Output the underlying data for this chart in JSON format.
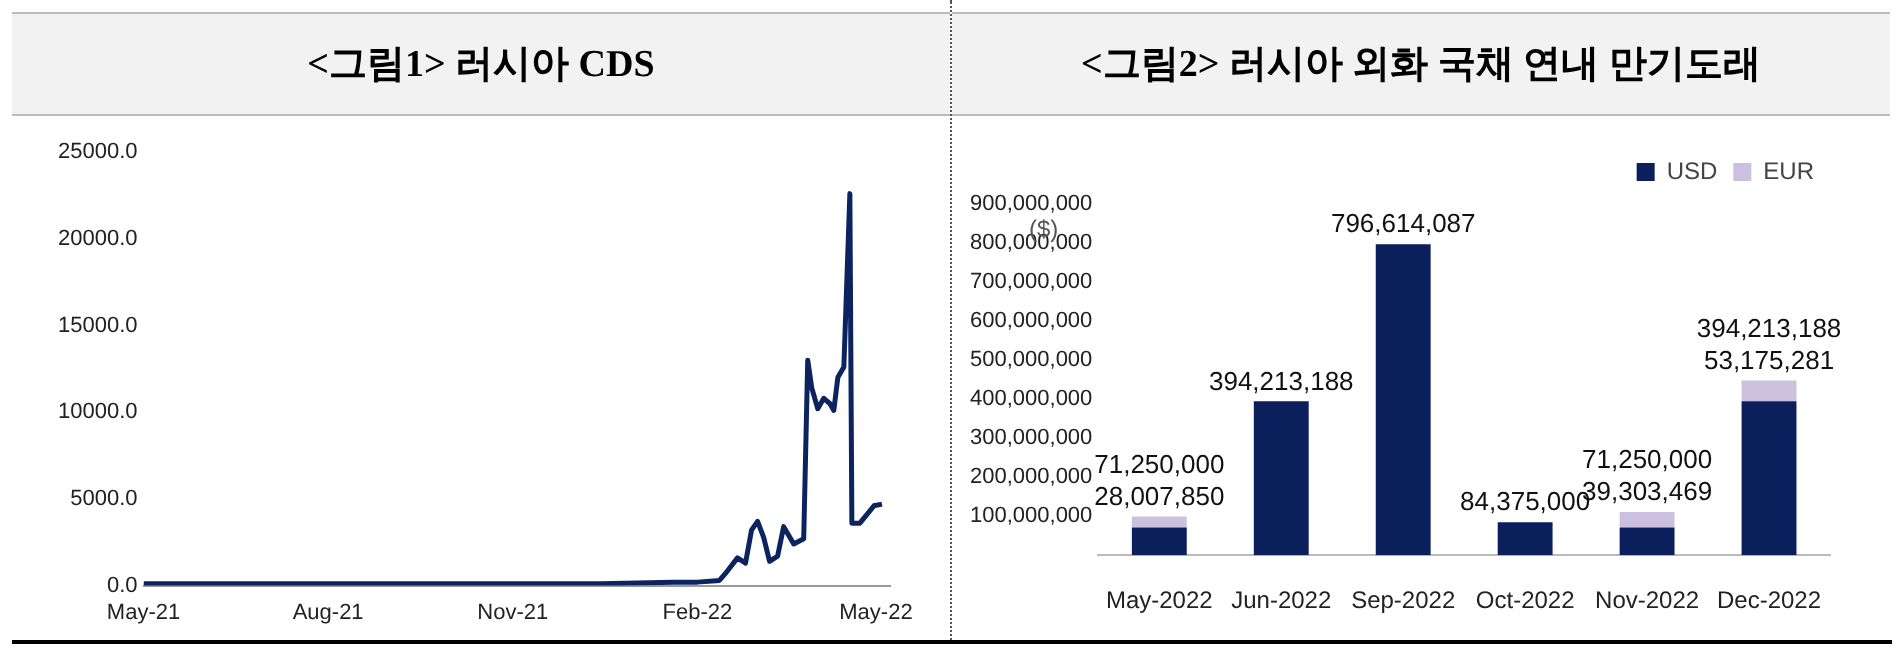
{
  "chart_data": [
    {
      "type": "line",
      "title": "<그림1> 러시아 CDS",
      "x": [
        "2021-05-01",
        "2021-06-15",
        "2021-08-01",
        "2021-09-15",
        "2021-11-01",
        "2021-12-15",
        "2022-01-20",
        "2022-02-01",
        "2022-02-12",
        "2022-02-15",
        "2022-02-21",
        "2022-02-25",
        "2022-02-28",
        "2022-03-03",
        "2022-03-06",
        "2022-03-09",
        "2022-03-13",
        "2022-03-16",
        "2022-03-19",
        "2022-03-21",
        "2022-03-26",
        "2022-03-28",
        "2022-03-30",
        "2022-04-02",
        "2022-04-05",
        "2022-04-08",
        "2022-04-10",
        "2022-04-12",
        "2022-04-15",
        "2022-04-18",
        "2022-04-19",
        "2022-04-23",
        "2022-04-30",
        "2022-05-04"
      ],
      "series": [
        {
          "color": "#0b2460",
          "values": [
            100,
            100,
            100,
            100,
            100,
            100,
            200,
            200,
            300,
            700,
            1600,
            1300,
            3200,
            3700,
            2800,
            1400,
            1700,
            3400,
            2800,
            2400,
            2700,
            13000,
            11400,
            10200,
            10800,
            10500,
            10100,
            12000,
            12600,
            22600,
            3600,
            3600,
            4600,
            4700
          ]
        }
      ],
      "xlim": [
        "2021-05-01",
        "2022-05-08"
      ],
      "xticks": [
        {
          "value": "2021-05-01",
          "label": "May-21"
        },
        {
          "value": "2021-08-01",
          "label": "Aug-21"
        },
        {
          "value": "2021-11-01",
          "label": "Nov-21"
        },
        {
          "value": "2022-02-01",
          "label": "Feb-22"
        },
        {
          "value": "2022-05-01",
          "label": "May-22"
        }
      ],
      "ylim": [
        0,
        25000
      ],
      "yticks": [
        {
          "value": 0,
          "label": "0.0"
        },
        {
          "value": 5000,
          "label": "5000.0"
        },
        {
          "value": 10000,
          "label": "10000.0"
        },
        {
          "value": 15000,
          "label": "15000.0"
        },
        {
          "value": 20000,
          "label": "20000.0"
        },
        {
          "value": 25000,
          "label": "25000.0"
        }
      ],
      "grid": false,
      "legend": false,
      "marker": "none",
      "line_style": "solid"
    },
    {
      "type": "bar",
      "title": "<그림2> 러시아 외화 국채 연내 만기도래",
      "ylabel": "($)",
      "stacked": true,
      "categories": [
        "May-2022",
        "Jun-2022",
        "Sep-2022",
        "Oct-2022",
        "Nov-2022",
        "Dec-2022"
      ],
      "series": [
        {
          "name": "USD",
          "color": "#0a1f5c",
          "values": [
            71250000,
            394213188,
            796614087,
            84375000,
            71250000,
            394213188
          ],
          "value_labels": [
            "71,250,000",
            "394,213,188",
            "796,614,087",
            "84,375,000",
            "71,250,000",
            "394,213,188"
          ]
        },
        {
          "name": "EUR",
          "color": "#cbc1de",
          "values": [
            28007850,
            null,
            null,
            null,
            39303469,
            53175281
          ],
          "value_labels": [
            "28,007,850",
            null,
            null,
            null,
            "39,303,469",
            "53,175,281"
          ]
        }
      ],
      "ylim": [
        0,
        900000000
      ],
      "yticks": [
        {
          "value": 100000000,
          "label": "100,000,000"
        },
        {
          "value": 200000000,
          "label": "200,000,000"
        },
        {
          "value": 300000000,
          "label": "300,000,000"
        },
        {
          "value": 400000000,
          "label": "400,000,000"
        },
        {
          "value": 500000000,
          "label": "500,000,000"
        },
        {
          "value": 600000000,
          "label": "600,000,000"
        },
        {
          "value": 700000000,
          "label": "700,000,000"
        },
        {
          "value": 800000000,
          "label": "800,000,000"
        },
        {
          "value": 900000000,
          "label": "900,000,000"
        }
      ],
      "grid": false,
      "legend": "top right"
    }
  ]
}
